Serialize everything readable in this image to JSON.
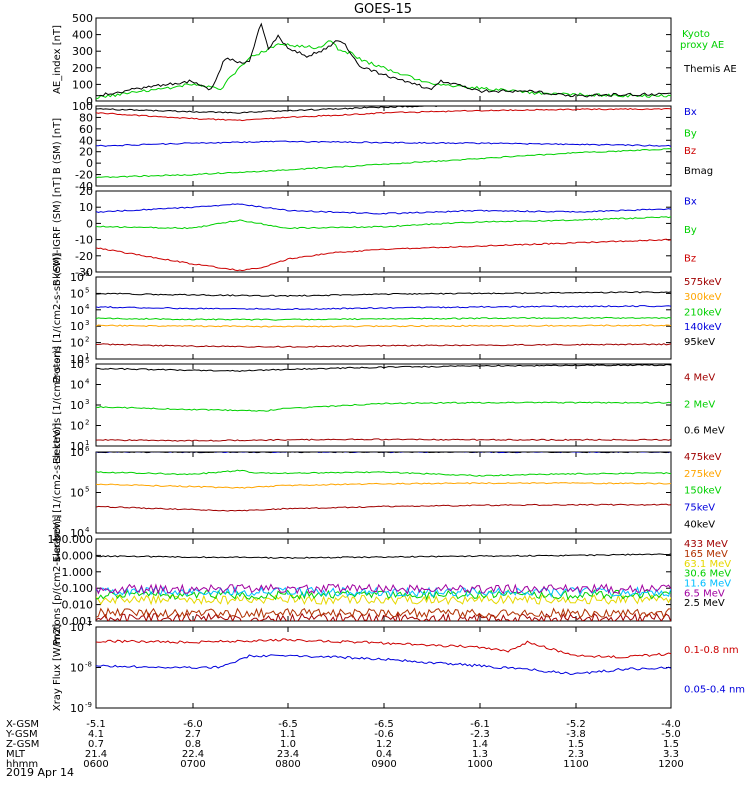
{
  "title": "GOES-15",
  "date": "2019 Apr 14",
  "colors": {
    "black": "#000000",
    "red": "#cc0000",
    "green": "#00d000",
    "blue": "#0000dd",
    "orange": "#ffa500",
    "yellow": "#e6d800",
    "cyan": "#00bfff",
    "brown": "#b03000",
    "purple": "#a000a0",
    "darkred": "#a00000",
    "gray": "#888888"
  },
  "ephemeris": {
    "row_labels": [
      "X-GSM",
      "Y-GSM",
      "Z-GSM",
      "MLT",
      "hhmm"
    ],
    "columns": [
      [
        "-5.1",
        "4.1",
        "0.7",
        "21.4",
        "0600"
      ],
      [
        "-6.0",
        "2.7",
        "0.8",
        "22.4",
        "0700"
      ],
      [
        "-6.5",
        "1.1",
        "1.0",
        "23.4",
        "0800"
      ],
      [
        "-6.5",
        "-0.6",
        "1.2",
        "0.4",
        "0900"
      ],
      [
        "-6.1",
        "-2.3",
        "1.4",
        "1.3",
        "1000"
      ],
      [
        "-5.2",
        "-3.8",
        "1.5",
        "2.3",
        "1100"
      ],
      [
        "-4.0",
        "-5.0",
        "1.5",
        "3.3",
        "1200"
      ]
    ]
  },
  "chart_data": [
    {
      "type": "line",
      "id": "ae",
      "ylabel": "AE_index [nT]",
      "yscale": "linear",
      "ylim": [
        0,
        500
      ],
      "yticks": [
        "0",
        "100",
        "200",
        "300",
        "400",
        "500"
      ],
      "x_hours": [
        6,
        12
      ],
      "series": [
        {
          "name": "Kyoto proxy AE",
          "color": "green",
          "x": [
            6.0,
            6.5,
            7.0,
            7.3,
            7.4,
            7.6,
            7.75,
            7.9,
            8.0,
            8.3,
            8.45,
            8.55,
            8.65,
            8.8,
            9.0,
            9.5,
            10.0,
            10.5,
            11.0,
            11.5,
            12.0
          ],
          "y": [
            20,
            60,
            100,
            70,
            140,
            260,
            300,
            340,
            340,
            320,
            360,
            300,
            290,
            240,
            200,
            100,
            80,
            50,
            40,
            30,
            30
          ]
        },
        {
          "name": "Themis AE",
          "color": "black",
          "x": [
            6.0,
            6.5,
            7.0,
            7.2,
            7.35,
            7.5,
            7.6,
            7.72,
            7.8,
            7.9,
            8.0,
            8.2,
            8.35,
            8.5,
            8.6,
            8.75,
            9.0,
            9.5,
            9.6,
            10.0,
            10.5,
            11.0,
            11.5,
            12.0
          ],
          "y": [
            30,
            80,
            120,
            70,
            260,
            230,
            240,
            470,
            310,
            390,
            320,
            270,
            300,
            360,
            340,
            210,
            160,
            70,
            120,
            60,
            60,
            30,
            40,
            40
          ]
        }
      ]
    },
    {
      "type": "line",
      "id": "bsm",
      "ylabel": "B (SM) [nT]",
      "yscale": "linear",
      "ylim": [
        -40,
        100
      ],
      "yticks": [
        "-40",
        "-20",
        "0",
        "20",
        "40",
        "60",
        "80",
        "100"
      ],
      "series": [
        {
          "name": "Bx",
          "color": "blue",
          "x": [
            6,
            7,
            8,
            9,
            10,
            11,
            12
          ],
          "y": [
            30,
            35,
            38,
            36,
            35,
            33,
            30
          ]
        },
        {
          "name": "By",
          "color": "green",
          "x": [
            6,
            7,
            8,
            9,
            10,
            11,
            12
          ],
          "y": [
            -25,
            -20,
            -12,
            -2,
            8,
            18,
            25
          ]
        },
        {
          "name": "Bz",
          "color": "red",
          "x": [
            6,
            7,
            7.5,
            8,
            9,
            10,
            11,
            12
          ],
          "y": [
            88,
            78,
            75,
            80,
            88,
            92,
            94,
            95
          ]
        },
        {
          "name": "Bmag",
          "color": "black",
          "x": [
            6,
            7,
            7.5,
            8,
            9,
            10,
            11,
            12
          ],
          "y": [
            95,
            90,
            88,
            92,
            98,
            102,
            104,
            105
          ]
        }
      ]
    },
    {
      "type": "line",
      "id": "bigrf",
      "ylabel": "B (SM)-IGRF (SM) [nT]",
      "yscale": "linear",
      "ylim": [
        -30,
        20
      ],
      "yticks": [
        "-30",
        "-20",
        "-10",
        "0",
        "10",
        "20"
      ],
      "series": [
        {
          "name": "Bx",
          "color": "blue",
          "x": [
            6,
            7,
            7.5,
            8,
            9,
            10,
            11,
            12
          ],
          "y": [
            7,
            10,
            12,
            8,
            6,
            8,
            7,
            9
          ]
        },
        {
          "name": "By",
          "color": "green",
          "x": [
            6,
            7,
            7.5,
            8,
            9,
            10,
            11,
            12
          ],
          "y": [
            -2,
            -3,
            2,
            -3,
            -2,
            1,
            2,
            4
          ]
        },
        {
          "name": "Bz",
          "color": "red",
          "x": [
            6,
            6.5,
            7,
            7.5,
            7.75,
            8,
            8.5,
            9,
            10,
            11,
            12
          ],
          "y": [
            -15,
            -20,
            -25,
            -29,
            -27,
            -22,
            -18,
            -16,
            -14,
            -12,
            -10
          ]
        }
      ]
    },
    {
      "type": "line",
      "id": "protons_lo",
      "ylabel": "Protons [1/(cm2-s-sr-keV)]",
      "yscale": "log",
      "ylim": [
        10,
        1000000
      ],
      "yticks": [
        "10^1",
        "10^2",
        "10^3",
        "10^4",
        "10^5",
        "10^6"
      ],
      "series": [
        {
          "name": "575keV",
          "color": "darkred",
          "x": [
            6,
            7,
            8,
            9,
            10,
            11,
            12
          ],
          "y": [
            80,
            60,
            55,
            65,
            70,
            75,
            80
          ]
        },
        {
          "name": "300keV",
          "color": "orange",
          "x": [
            6,
            7,
            8,
            9,
            10,
            11,
            12
          ],
          "y": [
            1100,
            1000,
            950,
            1000,
            1050,
            1100,
            1100
          ]
        },
        {
          "name": "210keV",
          "color": "green",
          "x": [
            6,
            7,
            8,
            9,
            10,
            11,
            12
          ],
          "y": [
            3000,
            2600,
            2500,
            2800,
            3000,
            3200,
            3200
          ]
        },
        {
          "name": "140keV",
          "color": "blue",
          "x": [
            6,
            7,
            8,
            9,
            10,
            11,
            12
          ],
          "y": [
            15000,
            12000,
            11000,
            13000,
            15000,
            16000,
            17000
          ]
        },
        {
          "name": "95keV",
          "color": "black",
          "x": [
            6,
            7,
            8,
            9,
            10,
            11,
            12
          ],
          "y": [
            100000,
            80000,
            70000,
            90000,
            100000,
            110000,
            120000
          ]
        }
      ]
    },
    {
      "type": "line",
      "id": "electrons_mev",
      "ylabel": "Electrons [1/(cm2-s-sr)]",
      "yscale": "log",
      "ylim": [
        10,
        100000
      ],
      "yticks": [
        "10^1",
        "10^2",
        "10^3",
        "10^4",
        "10^5"
      ],
      "series": [
        {
          "name": "4 MeV",
          "color": "darkred",
          "x": [
            6,
            7,
            8,
            9,
            10,
            11,
            12
          ],
          "y": [
            20,
            18,
            20,
            21,
            20,
            20,
            20
          ]
        },
        {
          "name": "2 MeV",
          "color": "green",
          "x": [
            6,
            6.5,
            7,
            7.5,
            7.75,
            8,
            8.5,
            9,
            10,
            11,
            12
          ],
          "y": [
            800,
            700,
            600,
            550,
            500,
            700,
            900,
            1200,
            1300,
            1300,
            1300
          ]
        },
        {
          "name": "0.6 MeV",
          "color": "black",
          "x": [
            6,
            7,
            7.5,
            8,
            9,
            10,
            11,
            12
          ],
          "y": [
            60000,
            50000,
            45000,
            55000,
            70000,
            80000,
            85000,
            90000
          ]
        }
      ]
    },
    {
      "type": "line",
      "id": "electrons_kev",
      "ylabel": "Electrons [1/(cm2-s-sr-keV)]",
      "yscale": "log",
      "ylim": [
        10000,
        1000000
      ],
      "yticks": [
        "10^4",
        "10^5",
        "10^6"
      ],
      "series": [
        {
          "name": "475keV",
          "color": "darkred",
          "x": [
            6,
            7,
            7.5,
            8,
            9,
            10,
            11,
            12
          ],
          "y": [
            45000,
            38000,
            35000,
            40000,
            45000,
            48000,
            50000,
            50000
          ]
        },
        {
          "name": "275keV",
          "color": "orange",
          "x": [
            6,
            7,
            7.5,
            8,
            9,
            10,
            11,
            12
          ],
          "y": [
            160000,
            140000,
            130000,
            150000,
            165000,
            170000,
            170000,
            165000
          ]
        },
        {
          "name": "150keV",
          "color": "green",
          "x": [
            6,
            7,
            7.5,
            7.7,
            8,
            9,
            10,
            11,
            12
          ],
          "y": [
            320000,
            280000,
            350000,
            300000,
            300000,
            320000,
            260000,
            290000,
            300000
          ]
        },
        {
          "name": "75keV",
          "color": "blue",
          "x": [
            6,
            12
          ],
          "y": [
            1000000,
            1000000
          ]
        },
        {
          "name": "40keV",
          "color": "black",
          "x": [
            6,
            12
          ],
          "y": [
            1000000,
            1000000
          ]
        }
      ]
    },
    {
      "type": "line",
      "id": "protons_hi",
      "ylabel": "Protons [p/(cm2-s-sr-keV)]",
      "yscale": "log",
      "ylim": [
        0.001,
        100
      ],
      "yticks": [
        "0.001",
        "0.010",
        "0.100",
        "1.000",
        "10.000",
        "100.000"
      ],
      "series": [
        {
          "name": "433 MeV",
          "color": "darkred",
          "x": [
            6,
            12
          ],
          "y": [
            0.0015,
            0.0015
          ]
        },
        {
          "name": "165 MeV",
          "color": "brown",
          "x": [
            6,
            12
          ],
          "y": [
            0.003,
            0.003
          ]
        },
        {
          "name": "63.1 MeV",
          "color": "yellow",
          "x": [
            6,
            12
          ],
          "y": [
            0.02,
            0.02
          ]
        },
        {
          "name": "30.6 MeV",
          "color": "green",
          "x": [
            6,
            12
          ],
          "y": [
            0.04,
            0.04
          ]
        },
        {
          "name": "11.6 MeV",
          "color": "cyan",
          "x": [
            6,
            12
          ],
          "y": [
            0.06,
            0.06
          ]
        },
        {
          "name": "6.5 MeV",
          "color": "purple",
          "x": [
            6,
            12
          ],
          "y": [
            0.09,
            0.09
          ]
        },
        {
          "name": "2.5 MeV",
          "color": "black",
          "x": [
            6,
            7,
            8,
            9,
            10,
            11,
            12
          ],
          "y": [
            9,
            8,
            7,
            8,
            9,
            10,
            12
          ]
        }
      ]
    },
    {
      "type": "line",
      "id": "xray",
      "ylabel": "Xray Flux [W/m2]",
      "yscale": "log",
      "ylim": [
        1e-09,
        1e-07
      ],
      "yticks": [
        "10^-9",
        "10^-8",
        "10^-7"
      ],
      "series": [
        {
          "name": "0.1-0.8 nm",
          "color": "red",
          "x": [
            6,
            7,
            8,
            9,
            10,
            10.3,
            10.5,
            11,
            11.5,
            12
          ],
          "y": [
            4.5e-08,
            4.2e-08,
            4.8e-08,
            4e-08,
            3.2e-08,
            2.5e-08,
            4.2e-08,
            2e-08,
            1.8e-08,
            2.2e-08
          ]
        },
        {
          "name": "0.05-0.4 nm",
          "color": "blue",
          "x": [
            6,
            7,
            7.3,
            7.6,
            8,
            9,
            10,
            10.5,
            11,
            11.5,
            12
          ],
          "y": [
            1.1e-08,
            1e-08,
            1e-08,
            1.9e-08,
            2e-08,
            1.6e-08,
            1.1e-08,
            9e-09,
            7e-09,
            9e-09,
            1e-08
          ]
        }
      ]
    }
  ]
}
